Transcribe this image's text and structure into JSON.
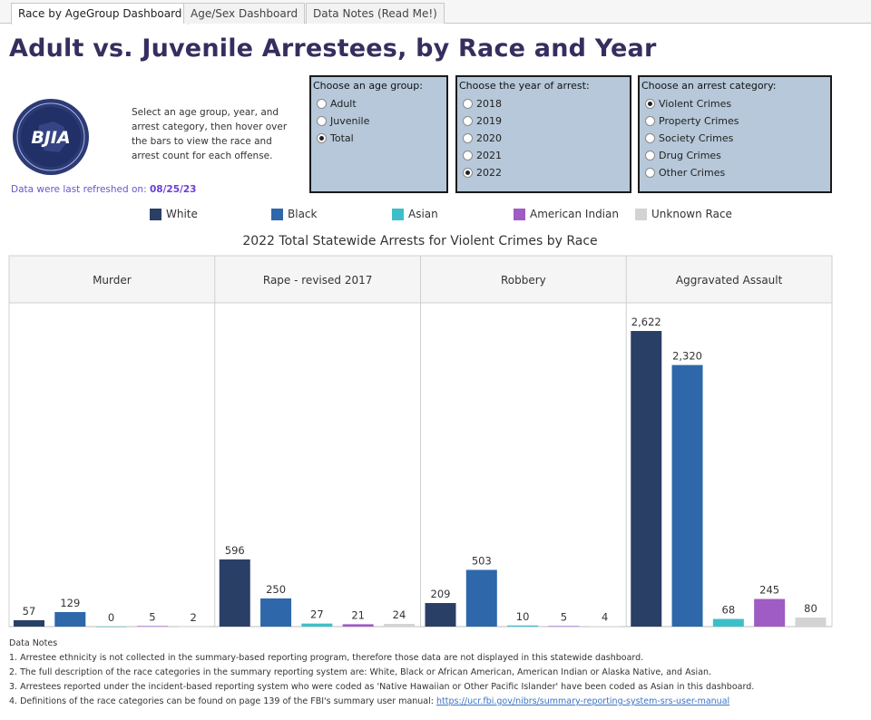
{
  "tabs": [
    {
      "label": "Race by AgeGroup Dashboard",
      "active": true
    },
    {
      "label": "Age/Sex Dashboard",
      "active": false
    },
    {
      "label": "Data Notes (Read Me!)",
      "active": false
    }
  ],
  "title": "Adult vs. Juvenile Arrestees, by Race and Year",
  "logo_text": "BJIA",
  "instructions": "Select an age group, year, and arrest category, then hover over the bars to view the race and arrest count for each offense.",
  "refresh": {
    "label": "Data were last refreshed on:",
    "date": "08/25/23"
  },
  "filters": {
    "age_group": {
      "title": "Choose an age group:",
      "options": [
        "Adult",
        "Juvenile",
        "Total"
      ],
      "selected": "Total"
    },
    "year": {
      "title": "Choose the year of arrest:",
      "options": [
        "2018",
        "2019",
        "2020",
        "2021",
        "2022"
      ],
      "selected": "2022"
    },
    "category": {
      "title": "Choose an arrest category:",
      "options": [
        "Violent Crimes",
        "Property Crimes",
        "Society Crimes",
        "Drug Crimes",
        "Other Crimes"
      ],
      "selected": "Violent Crimes"
    }
  },
  "colors": {
    "White": "#2a3f66",
    "Black": "#2e67aa",
    "Asian": "#3dbfc9",
    "American Indian": "#9e5cc4",
    "Unknown Race": "#d3d3d3",
    "title": "#342f5e",
    "filter_bg": "#b6c8d9"
  },
  "chart_data": {
    "type": "bar",
    "title": "2022 Total Statewide Arrests for Violent Crimes by Race",
    "panels": [
      "Murder",
      "Rape - revised 2017",
      "Robbery",
      "Aggravated Assault"
    ],
    "series": [
      {
        "name": "White",
        "values": [
          57,
          596,
          209,
          2622
        ]
      },
      {
        "name": "Black",
        "values": [
          129,
          250,
          503,
          2320
        ]
      },
      {
        "name": "Asian",
        "values": [
          0,
          27,
          10,
          68
        ]
      },
      {
        "name": "American Indian",
        "values": [
          5,
          21,
          5,
          245
        ]
      },
      {
        "name": "Unknown Race",
        "values": [
          2,
          24,
          4,
          80
        ]
      }
    ],
    "value_labels": [
      [
        "57",
        "596",
        "209",
        "2,622"
      ],
      [
        "129",
        "250",
        "503",
        "2,320"
      ],
      [
        "0",
        "27",
        "10",
        "68"
      ],
      [
        "5",
        "21",
        "5",
        "245"
      ],
      [
        "2",
        "24",
        "4",
        "80"
      ]
    ],
    "ylim": [
      0,
      2622
    ],
    "legend": "top",
    "grid": false
  },
  "notes": {
    "heading": "Data Notes",
    "lines": [
      "1. Arrestee ethnicity is not collected in the summary-based reporting program, therefore those data are not displayed in this statewide dashboard.",
      "2. The full description of the race categories in the summary reporting system are:  White, Black or African American, American Indian or Alaska Native, and Asian.",
      "3. Arrestees reported under the incident-based reporting system who were coded as 'Native Hawaiian or Other Pacific Islander' have been coded as Asian in this dashboard."
    ],
    "line4": "4. Definitions of the race categories can be found on page 139 of the FBI's summary user manual:",
    "link": "https://ucr.fbi.gov/nibrs/summary-reporting-system-srs-user-manual"
  }
}
